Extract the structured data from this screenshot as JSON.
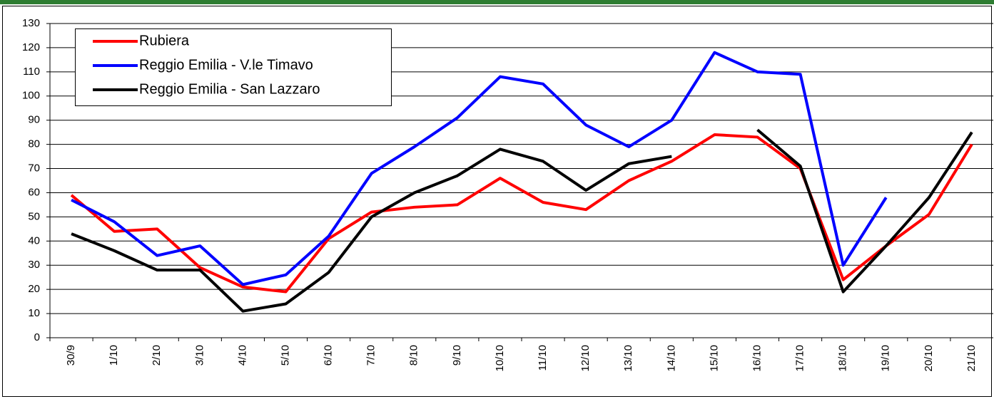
{
  "chart_data": {
    "type": "line",
    "categories": [
      "30/9",
      "1/10",
      "2/10",
      "3/10",
      "4/10",
      "5/10",
      "6/10",
      "7/10",
      "8/10",
      "9/10",
      "10/10",
      "11/10",
      "12/10",
      "13/10",
      "14/10",
      "15/10",
      "16/10",
      "17/10",
      "18/10",
      "19/10",
      "20/10",
      "21/10"
    ],
    "series": [
      {
        "name": "Rubiera",
        "color": "#ff0000",
        "values": [
          59,
          44,
          45,
          29,
          21,
          19,
          41,
          52,
          54,
          55,
          66,
          56,
          53,
          65,
          73,
          84,
          83,
          70,
          24,
          38,
          51,
          80
        ]
      },
      {
        "name": "Reggio Emilia - V.le Timavo",
        "color": "#0000ff",
        "values": [
          57,
          48,
          34,
          38,
          22,
          26,
          42,
          68,
          79,
          91,
          108,
          105,
          88,
          79,
          90,
          118,
          110,
          109,
          30,
          58,
          null,
          null
        ]
      },
      {
        "name": "Reggio Emilia - San Lazzaro",
        "color": "#000000",
        "values": [
          43,
          36,
          28,
          28,
          11,
          14,
          27,
          50,
          60,
          67,
          78,
          73,
          61,
          72,
          75,
          null,
          86,
          71,
          19,
          38,
          58,
          85
        ]
      }
    ],
    "ylim": [
      0,
      130
    ],
    "yticks": [
      0,
      10,
      20,
      30,
      40,
      50,
      60,
      70,
      80,
      90,
      100,
      110,
      120,
      130
    ],
    "grid": true,
    "legend": "top-left"
  }
}
